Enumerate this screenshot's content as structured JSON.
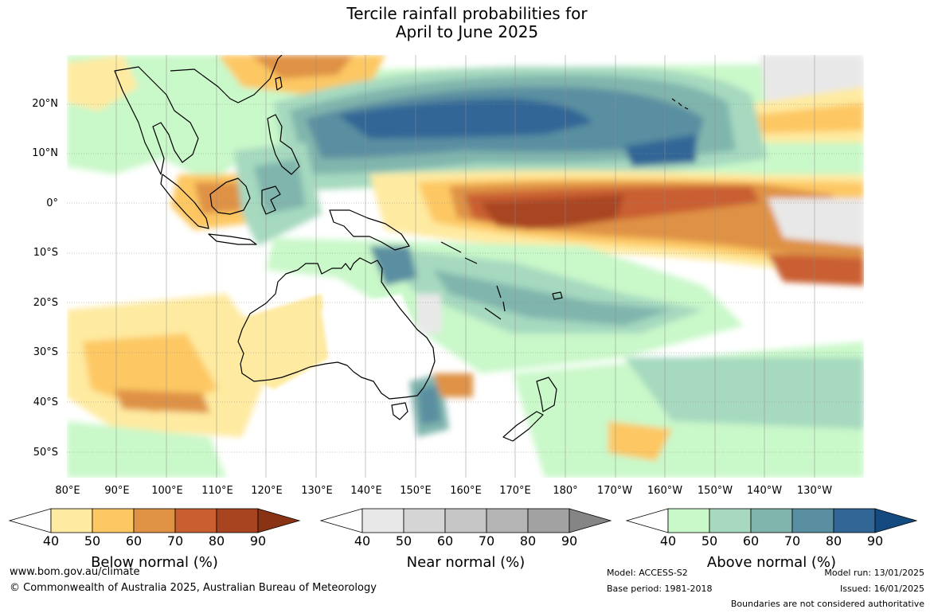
{
  "title": {
    "line1": "Tercile rainfall probabilities for",
    "line2": "April to June 2025"
  },
  "map": {
    "lat_labels": [
      "20°N",
      "10°N",
      "0°",
      "10°S",
      "20°S",
      "30°S",
      "40°S",
      "50°S"
    ],
    "lon_labels": [
      "80°E",
      "90°E",
      "100°E",
      "110°E",
      "120°E",
      "130°E",
      "140°E",
      "150°E",
      "160°E",
      "170°E",
      "180°",
      "170°W",
      "160°W",
      "150°W",
      "140°W",
      "130°W"
    ],
    "gridlines": true,
    "coastlines": true
  },
  "legends": {
    "below": {
      "title": "Below normal (%)",
      "ticks": [
        "40",
        "50",
        "60",
        "70",
        "80",
        "90"
      ],
      "colors": [
        "#ffffff",
        "#feeaa0",
        "#fdc863",
        "#df9244",
        "#c95f30",
        "#a84420",
        "#8a3214"
      ]
    },
    "near": {
      "title": "Near normal (%)",
      "ticks": [
        "40",
        "50",
        "60",
        "70",
        "80",
        "90"
      ],
      "colors": [
        "#ffffff",
        "#e8e8e8",
        "#d5d5d5",
        "#c6c6c6",
        "#b4b4b4",
        "#a2a2a2",
        "#858585"
      ]
    },
    "above": {
      "title": "Above normal (%)",
      "ticks": [
        "40",
        "50",
        "60",
        "70",
        "80",
        "90"
      ],
      "colors": [
        "#ffffff",
        "#c9f8c9",
        "#a6d9bf",
        "#80b5ad",
        "#5a8fa1",
        "#326696",
        "#154a80"
      ]
    }
  },
  "footer": {
    "url": "www.bom.gov.au/climate",
    "copyright": "© Commonwealth of Australia 2025, Australian Bureau of Meteorology",
    "model": "Model: ACCESS-S2",
    "base_period": "Base period: 1981-2018",
    "model_run": "Model run: 13/01/2025",
    "issued": "Issued: 16/01/2025",
    "disclaimer": "Boundaries are not considered authoritative"
  }
}
